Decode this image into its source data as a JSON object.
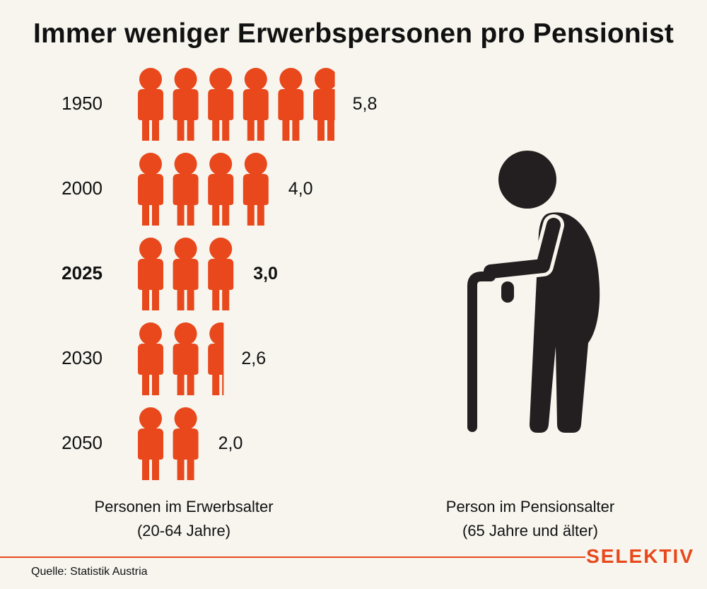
{
  "title": "Immer weniger Erwerbspersonen pro Pensionist",
  "chart_data": {
    "type": "pictogram",
    "title": "Immer weniger Erwerbspersonen pro Pensionist",
    "unit": "Personen im Erwerbsalter pro Person im Pensionsalter",
    "categories": [
      "1950",
      "2000",
      "2025",
      "2030",
      "2050"
    ],
    "values": [
      5.8,
      4.0,
      3.0,
      2.6,
      2.0
    ],
    "value_labels": [
      "5,8",
      "4,0",
      "3,0",
      "2,6",
      "2,0"
    ],
    "highlight": "2025"
  },
  "captions": {
    "working": {
      "line1": "Personen im Erwerbsalter",
      "line2": "(20-64 Jahre)"
    },
    "retired": {
      "line1": "Person im Pensionsalter",
      "line2": "(65 Jahre und älter)"
    }
  },
  "colors": {
    "accent": "#e8481b",
    "retiree": "#231f20",
    "background": "#f7f5ee"
  },
  "brand": "SELEKTIV",
  "source": "Quelle: Statistik Austria"
}
